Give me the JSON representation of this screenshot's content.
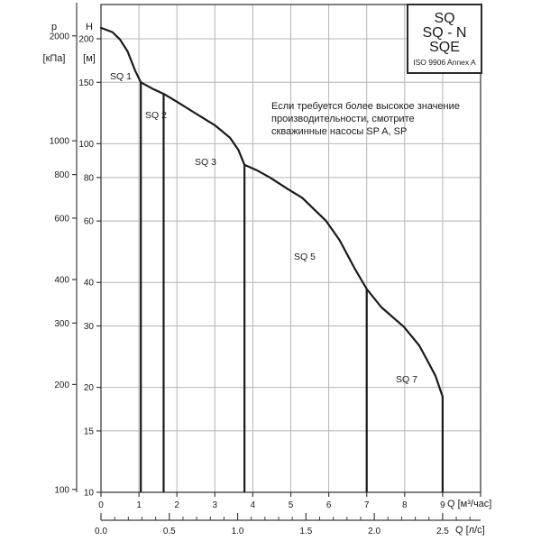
{
  "info_box": {
    "lines": [
      "SQ",
      "SQ - N",
      "SQE",
      "ISO 9906 Annex A"
    ]
  },
  "axes": {
    "pressure": {
      "title": "p",
      "unit": "[кПа]"
    },
    "head": {
      "title": "H",
      "unit": "[м]"
    },
    "flow": {
      "unit_label": "Q [м³/час]"
    },
    "flow_ls": {
      "unit_label": "Q [л/с]"
    }
  },
  "annotation": {
    "lines": [
      "Если требуется более высокое значение",
      "производительности, смотрите",
      "скважинные насосы SP A, SP"
    ]
  },
  "curve_labels": [
    {
      "label": "SQ 1"
    },
    {
      "label": "SQ 2"
    },
    {
      "label": "SQ 3"
    },
    {
      "label": "SQ 5"
    },
    {
      "label": "SQ 7"
    }
  ],
  "colors": {
    "curve": "#1a1a1a",
    "frame": "#3c3c3c",
    "grid": "#b4b4b4",
    "text": "#1a1a1a"
  },
  "chart_data": {
    "type": "line",
    "title": "SQ / SQ-N / SQE — напор H от подачи Q",
    "xlabel": "Q [м³/час]",
    "x2label": "Q [л/с]",
    "ylabel": "H [м]",
    "y2label": "p [кПа]",
    "x_scale": "linear",
    "y_scale": "log",
    "xlim": [
      0,
      10
    ],
    "ylim": [
      10,
      251
    ],
    "grid": true,
    "x_ticks": [
      0,
      1,
      2,
      3,
      4,
      5,
      6,
      7,
      8,
      9
    ],
    "x2_major_ticks": [
      "0.0",
      "0.5",
      "1.0",
      "1.5",
      "2.0",
      "2.5"
    ],
    "x2_minor_step": 0.1,
    "x2_minor_max": 2.7,
    "x2_to_x_factor": 3.6,
    "y_ticks": [
      10,
      15,
      20,
      30,
      40,
      60,
      80,
      100,
      150,
      200
    ],
    "y2_ticks_kpa": [
      100,
      200,
      300,
      400,
      600,
      800,
      1000,
      2000
    ],
    "kpa_per_m": 9.81,
    "envelope": {
      "q": [
        0,
        0.3,
        0.5,
        0.7,
        0.9,
        1.05,
        1.35,
        1.65,
        2.0,
        2.5,
        3.0,
        3.4,
        3.62,
        3.78,
        4.1,
        4.45,
        4.93,
        5.3,
        5.93,
        6.28,
        6.7,
        7.0,
        7.38,
        7.98,
        8.38,
        8.57,
        8.81,
        9.0
      ],
      "h": [
        215,
        209,
        199,
        184,
        162,
        150,
        144,
        139,
        132,
        122,
        113,
        104,
        96,
        87,
        84,
        80,
        74,
        70,
        60,
        53,
        43.5,
        38.3,
        34,
        29.8,
        26.4,
        24.2,
        21.6,
        18.8
      ]
    },
    "series": [
      {
        "name": "SQ 1",
        "q_max": 1.05,
        "h_at_q_max": 150
      },
      {
        "name": "SQ 2",
        "q_max": 1.65,
        "h_at_q_max": 139
      },
      {
        "name": "SQ 3",
        "q_max": 3.78,
        "h_at_q_max": 87
      },
      {
        "name": "SQ 5",
        "q_max": 7.0,
        "h_at_q_max": 38.3
      },
      {
        "name": "SQ 7",
        "q_max": 9.0,
        "h_at_q_max": 18.8
      }
    ]
  }
}
